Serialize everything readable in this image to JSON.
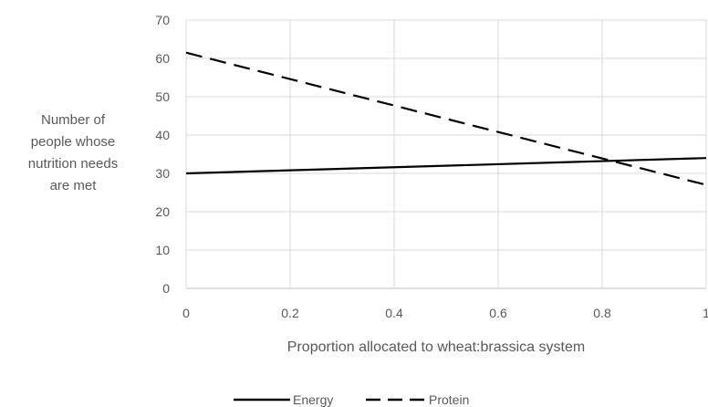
{
  "chart_data": {
    "type": "line",
    "title": "",
    "xlabel": "Proportion allocated to wheat:brassica system",
    "ylabel_lines": [
      "Number  of",
      "people whose",
      "nutrition needs",
      "are met"
    ],
    "xlim": [
      0,
      1
    ],
    "ylim": [
      0,
      70
    ],
    "x_ticks": [
      0,
      0.2,
      0.4,
      0.6,
      0.8,
      1
    ],
    "x_tick_labels": [
      "0",
      "0.2",
      "0.4",
      "0.6",
      "0.8",
      "1"
    ],
    "y_ticks": [
      0,
      10,
      20,
      30,
      40,
      50,
      60,
      70
    ],
    "y_tick_labels": [
      "0",
      "10",
      "20",
      "30",
      "40",
      "50",
      "60",
      "70"
    ],
    "grid": true,
    "legend_position": "bottom",
    "series": [
      {
        "name": "Energy",
        "x": [
          0,
          1
        ],
        "y": [
          30,
          34
        ],
        "dash": "solid",
        "color": "#000000"
      },
      {
        "name": "Protein",
        "x": [
          0,
          1
        ],
        "y": [
          61.5,
          27
        ],
        "dash": "dashed",
        "color": "#000000"
      }
    ]
  }
}
